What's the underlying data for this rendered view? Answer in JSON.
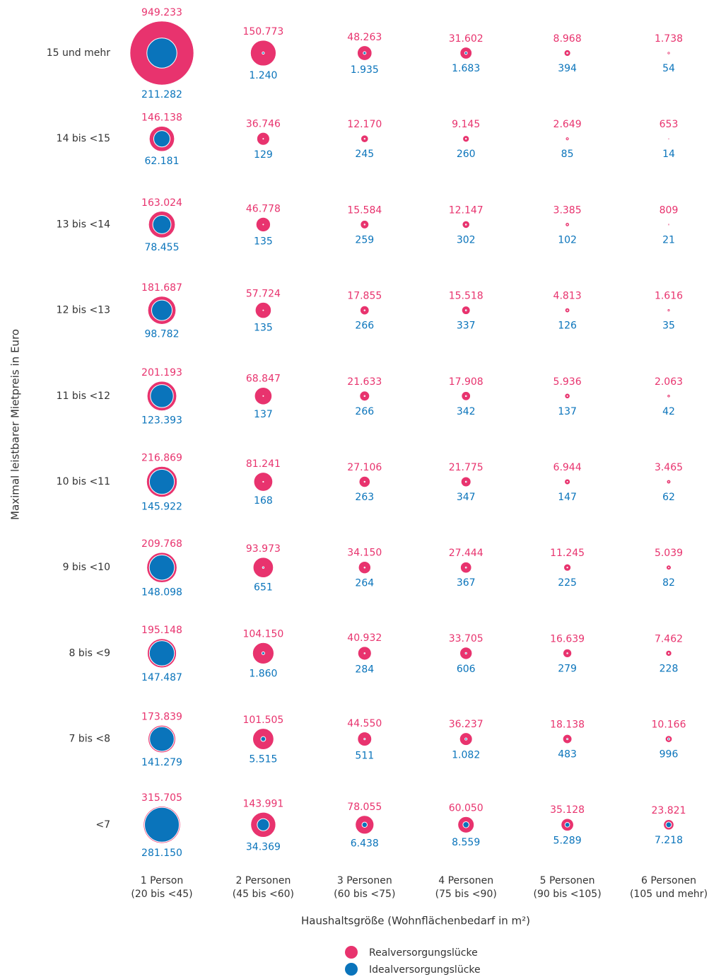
{
  "chart_data": {
    "type": "bubble-grid",
    "y_label": "Maximal leistbarer Mietpreis in Euro",
    "x_label": "Haushaltsgröße (Wohnflächenbedarf in m²)",
    "rows": [
      "15 und mehr",
      "14 bis <15",
      "13 bis <14",
      "12 bis <13",
      "11 bis <12",
      "10 bis <11",
      "9 bis <10",
      "8 bis <9",
      "7 bis <8",
      "<7"
    ],
    "categories": [
      [
        "1 Person",
        "(20 bis <45)"
      ],
      [
        "2 Personen",
        "(45 bis <60)"
      ],
      [
        "3 Personen",
        "(60 bis <75)"
      ],
      [
        "4 Personen",
        "(75 bis <90)"
      ],
      [
        "5 Personen",
        "(90 bis <105)"
      ],
      [
        "6 Personen",
        "(105 und mehr)"
      ]
    ],
    "series": [
      {
        "name": "Realversorgungslücke",
        "color": "#e8336e",
        "values": [
          [
            949233,
            150773,
            48263,
            31602,
            8968,
            1738
          ],
          [
            146138,
            36746,
            12170,
            9145,
            2649,
            653
          ],
          [
            163024,
            46778,
            15584,
            12147,
            3385,
            809
          ],
          [
            181687,
            57724,
            17855,
            15518,
            4813,
            1616
          ],
          [
            201193,
            68847,
            21633,
            17908,
            5936,
            2063
          ],
          [
            216869,
            81241,
            27106,
            21775,
            6944,
            3465
          ],
          [
            209768,
            93973,
            34150,
            27444,
            11245,
            5039
          ],
          [
            195148,
            104150,
            40932,
            33705,
            16639,
            7462
          ],
          [
            173839,
            101505,
            44550,
            36237,
            18138,
            10166
          ],
          [
            315705,
            143991,
            78055,
            60050,
            35128,
            23821
          ]
        ],
        "value_labels": [
          [
            "949.233",
            "150.773",
            "48.263",
            "31.602",
            "8.968",
            "1.738"
          ],
          [
            "146.138",
            "36.746",
            "12.170",
            "9.145",
            "2.649",
            "653"
          ],
          [
            "163.024",
            "46.778",
            "15.584",
            "12.147",
            "3.385",
            "809"
          ],
          [
            "181.687",
            "57.724",
            "17.855",
            "15.518",
            "4.813",
            "1.616"
          ],
          [
            "201.193",
            "68.847",
            "21.633",
            "17.908",
            "5.936",
            "2.063"
          ],
          [
            "216.869",
            "81.241",
            "27.106",
            "21.775",
            "6.944",
            "3.465"
          ],
          [
            "209.768",
            "93.973",
            "34.150",
            "27.444",
            "11.245",
            "5.039"
          ],
          [
            "195.148",
            "104.150",
            "40.932",
            "33.705",
            "16.639",
            "7.462"
          ],
          [
            "173.839",
            "101.505",
            "44.550",
            "36.237",
            "18.138",
            "10.166"
          ],
          [
            "315.705",
            "143.991",
            "78.055",
            "60.050",
            "35.128",
            "23.821"
          ]
        ]
      },
      {
        "name": "Idealversorgungslücke",
        "color": "#0a74bb",
        "values": [
          [
            211282,
            1240,
            1935,
            1683,
            394,
            54
          ],
          [
            62181,
            129,
            245,
            260,
            85,
            14
          ],
          [
            78455,
            135,
            259,
            302,
            102,
            21
          ],
          [
            98782,
            135,
            266,
            337,
            126,
            35
          ],
          [
            123393,
            137,
            266,
            342,
            137,
            42
          ],
          [
            145922,
            168,
            263,
            347,
            147,
            62
          ],
          [
            148098,
            651,
            264,
            367,
            225,
            82
          ],
          [
            147487,
            1860,
            284,
            606,
            279,
            228
          ],
          [
            141279,
            5515,
            511,
            1082,
            483,
            996
          ],
          [
            281150,
            34369,
            6438,
            8559,
            5289,
            7218
          ]
        ],
        "value_labels": [
          [
            "211.282",
            "1.240",
            "1.935",
            "1.683",
            "394",
            "54"
          ],
          [
            "62.181",
            "129",
            "245",
            "260",
            "85",
            "14"
          ],
          [
            "78.455",
            "135",
            "259",
            "302",
            "102",
            "21"
          ],
          [
            "98.782",
            "135",
            "266",
            "337",
            "126",
            "35"
          ],
          [
            "123.393",
            "137",
            "266",
            "342",
            "137",
            "42"
          ],
          [
            "145.922",
            "168",
            "263",
            "347",
            "147",
            "62"
          ],
          [
            "148.098",
            "651",
            "264",
            "367",
            "225",
            "82"
          ],
          [
            "147.487",
            "1.860",
            "284",
            "606",
            "279",
            "228"
          ],
          [
            "141.279",
            "5.515",
            "511",
            "1.082",
            "483",
            "996"
          ],
          [
            "281.150",
            "34.369",
            "6.438",
            "8.559",
            "5.289",
            "7.218"
          ]
        ]
      }
    ]
  }
}
